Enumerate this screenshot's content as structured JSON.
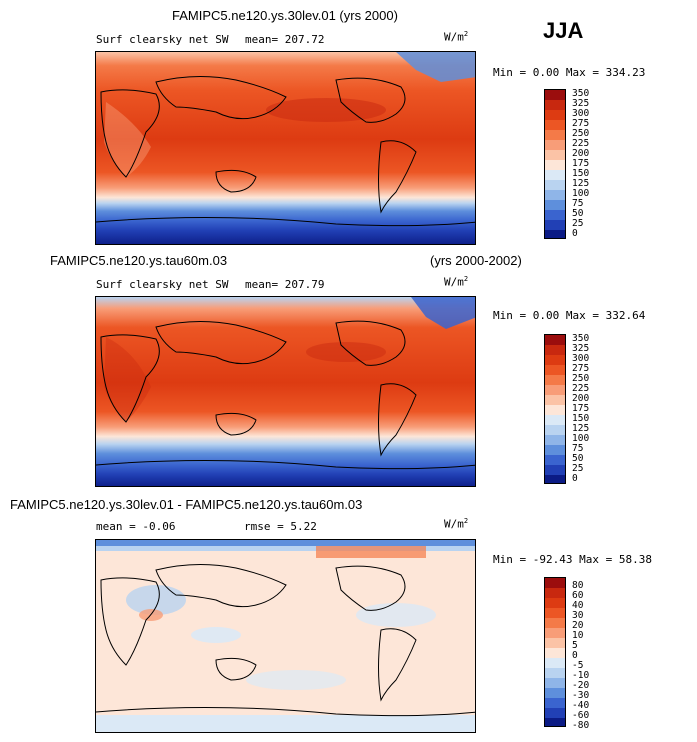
{
  "season_label": "JJA",
  "panels": [
    {
      "title": "FAMIPC5.ne120.ys.30lev.01 (yrs 2000)",
      "run_label": "",
      "years_label": "",
      "variable": "Surf clearsky net SW",
      "mean_text": "mean= 207.72",
      "rmse_text": "",
      "units": "W/m",
      "units_exp": "2",
      "minmax_text": "Min =   0.00 Max = 334.23",
      "colorbar_labels": [
        "350",
        "325",
        "300",
        "275",
        "250",
        "225",
        "200",
        "175",
        "150",
        "125",
        "100",
        "75",
        "50",
        "25",
        "0"
      ],
      "colorbar_colors": [
        "#9b0d0d",
        "#c8280f",
        "#dd3b12",
        "#ec5624",
        "#f47a48",
        "#f89d78",
        "#fbc3a6",
        "#fde6d8",
        "#dbe9f6",
        "#b9d3f0",
        "#8fb5e8",
        "#5e8fdc",
        "#3a64cf",
        "#2140b5",
        "#0b1b85"
      ]
    },
    {
      "title": "",
      "run_label": "FAMIPC5.ne120.ys.tau60m.03",
      "years_label": "(yrs 2000-2002)",
      "variable": "Surf clearsky net SW",
      "mean_text": "mean= 207.79",
      "rmse_text": "",
      "units": "W/m",
      "units_exp": "2",
      "minmax_text": "Min =   0.00 Max = 332.64",
      "colorbar_labels": [
        "350",
        "325",
        "300",
        "275",
        "250",
        "225",
        "200",
        "175",
        "150",
        "125",
        "100",
        "75",
        "50",
        "25",
        "0"
      ],
      "colorbar_colors": [
        "#9b0d0d",
        "#c8280f",
        "#dd3b12",
        "#ec5624",
        "#f47a48",
        "#f89d78",
        "#fbc3a6",
        "#fde6d8",
        "#dbe9f6",
        "#b9d3f0",
        "#8fb5e8",
        "#5e8fdc",
        "#3a64cf",
        "#2140b5",
        "#0b1b85"
      ]
    },
    {
      "title": "FAMIPC5.ne120.ys.30lev.01 - FAMIPC5.ne120.ys.tau60m.03",
      "run_label": "",
      "years_label": "",
      "variable": "",
      "mean_text": "mean =   -0.06",
      "rmse_text": "rmse =    5.22",
      "units": "W/m",
      "units_exp": "2",
      "minmax_text": "Min = -92.43 Max =  58.38",
      "colorbar_labels": [
        "80",
        "60",
        "40",
        "30",
        "20",
        "10",
        "5",
        "0",
        "-5",
        "-10",
        "-20",
        "-30",
        "-40",
        "-60",
        "-80"
      ],
      "colorbar_colors": [
        "#9b0d0d",
        "#c8280f",
        "#dd3b12",
        "#ec5624",
        "#f47a48",
        "#f89d78",
        "#fbc3a6",
        "#fde6d8",
        "#dbe9f6",
        "#b9d3f0",
        "#8fb5e8",
        "#5e8fdc",
        "#3a64cf",
        "#2140b5",
        "#0b1b85"
      ]
    }
  ]
}
